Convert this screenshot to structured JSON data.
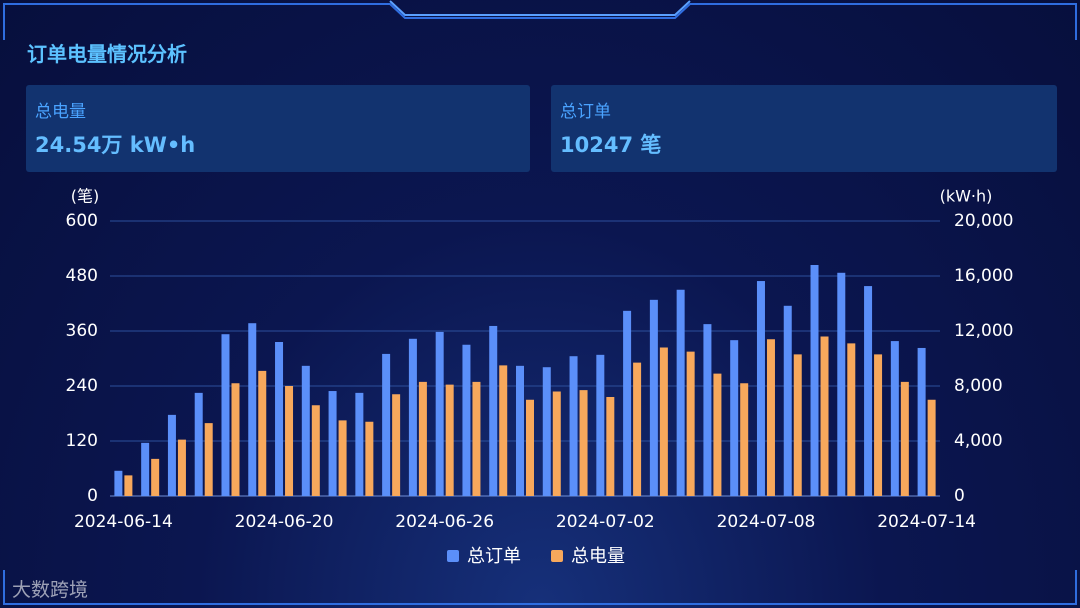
{
  "title": "订单电量情况分析",
  "cards": [
    {
      "label": "总电量",
      "value": "24.54万 kW•h"
    },
    {
      "label": "总订单",
      "value": "10247 笔"
    }
  ],
  "watermark": "大数跨境",
  "chart_data": {
    "type": "bar",
    "y_label": "(笔)",
    "y2_label": "(kW·h)",
    "categories": [
      "2024-06-14",
      null,
      null,
      null,
      null,
      null,
      "2024-06-20",
      null,
      null,
      null,
      null,
      null,
      "2024-06-26",
      null,
      null,
      null,
      null,
      null,
      "2024-07-02",
      null,
      null,
      null,
      null,
      null,
      "2024-07-08",
      null,
      null,
      null,
      null,
      null,
      "2024-07-14"
    ],
    "series": [
      {
        "name": "总订单",
        "color": "#5b8ff9",
        "axis": "y",
        "values": [
          55,
          116,
          177,
          225,
          353,
          377,
          336,
          284,
          229,
          225,
          310,
          343,
          358,
          330,
          371,
          284,
          281,
          305,
          308,
          404,
          428,
          450,
          375,
          340,
          469,
          415,
          504,
          487,
          458,
          338,
          323
        ]
      },
      {
        "name": "总电量",
        "color": "#f7a85c",
        "axis": "y2",
        "values": [
          1500,
          2700,
          4100,
          5300,
          8200,
          9100,
          8000,
          6600,
          5500,
          5400,
          7400,
          8300,
          8100,
          8300,
          9500,
          7000,
          7600,
          7700,
          7200,
          9700,
          10800,
          10500,
          8900,
          8200,
          11400,
          10300,
          11600,
          11100,
          10300,
          8300,
          7000
        ]
      }
    ],
    "ylim": [
      0,
      600
    ],
    "yticks": [
      0,
      120,
      240,
      360,
      480,
      600
    ],
    "y2lim": [
      0,
      20000
    ],
    "y2ticks": [
      0,
      {
        "value": 4000,
        "label": "4,000"
      },
      {
        "value": 8000,
        "label": "8,000"
      },
      {
        "value": 12000,
        "label": "12,000"
      },
      {
        "value": 16000,
        "label": "16,000"
      },
      {
        "value": 20000,
        "label": "20,000"
      }
    ],
    "grid": true,
    "legend": "bottom"
  }
}
